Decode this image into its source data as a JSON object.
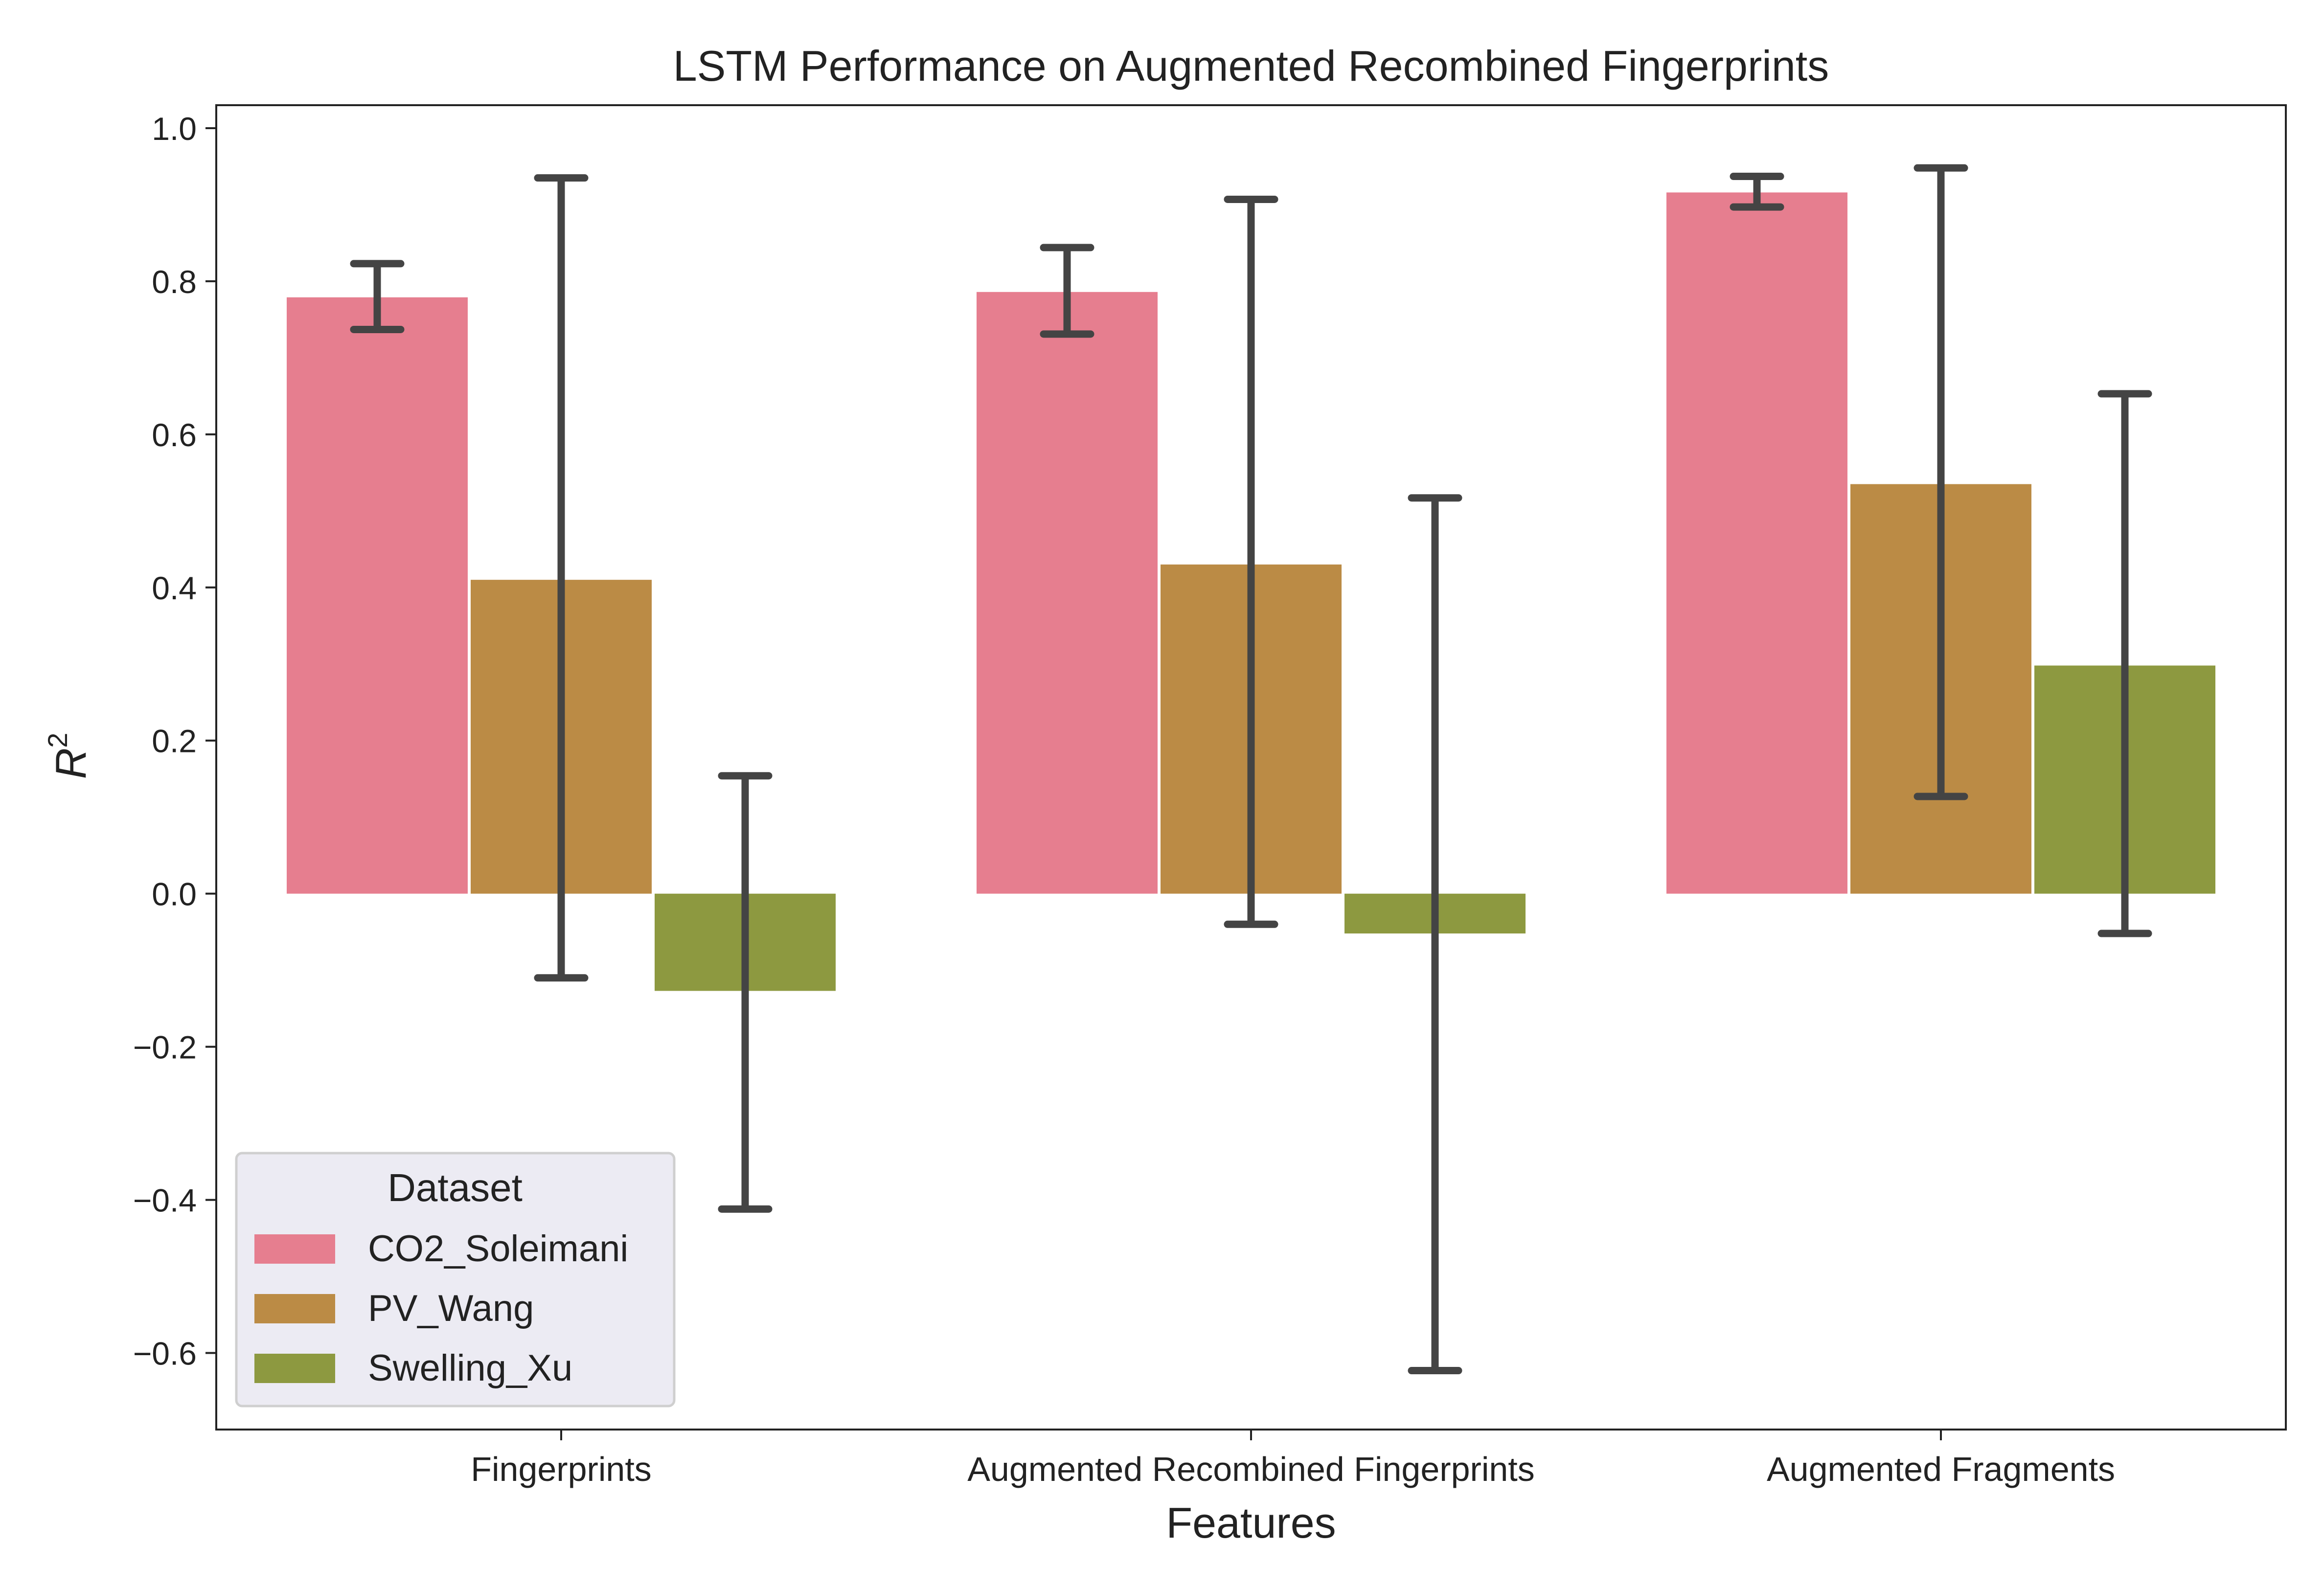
{
  "chart_data": {
    "type": "bar",
    "title": "LSTM Performance on Augmented Recombined Fingerprints",
    "xlabel": "Features",
    "ylabel": "R²",
    "ylabel_base": "R",
    "ylabel_sup": "2",
    "categories": [
      "Fingerprints",
      "Augmented Recombined Fingerprints",
      "Augmented Fragments"
    ],
    "ylim": [
      -0.7,
      1.03
    ],
    "yticks": [
      1.0,
      0.8,
      0.6,
      0.4,
      0.2,
      0.0,
      -0.2,
      -0.4,
      -0.6
    ],
    "ytick_labels": [
      "1.0",
      "0.8",
      "0.6",
      "0.4",
      "0.2",
      "0.0",
      "−0.2",
      "−0.4",
      "−0.6"
    ],
    "grid": false,
    "legend": {
      "title": "Dataset",
      "position": "lower-left"
    },
    "series": [
      {
        "name": "CO2_Soleimani",
        "color": "#e67e8f",
        "values": [
          0.779,
          0.786,
          0.916
        ],
        "err_low": [
          0.737,
          0.731,
          0.897
        ],
        "err_high": [
          0.823,
          0.844,
          0.937
        ]
      },
      {
        "name": "PV_Wang",
        "color": "#bb8b45",
        "values": [
          0.41,
          0.43,
          0.535
        ],
        "err_low": [
          -0.11,
          -0.04,
          0.127
        ],
        "err_high": [
          0.935,
          0.907,
          0.948
        ]
      },
      {
        "name": "Swelling_Xu",
        "color": "#8d9940",
        "values": [
          -0.127,
          -0.052,
          0.298
        ],
        "err_low": [
          -0.412,
          -0.623,
          -0.052
        ],
        "err_high": [
          0.154,
          0.517,
          0.653
        ]
      }
    ],
    "errorbar_color": "#444444"
  }
}
